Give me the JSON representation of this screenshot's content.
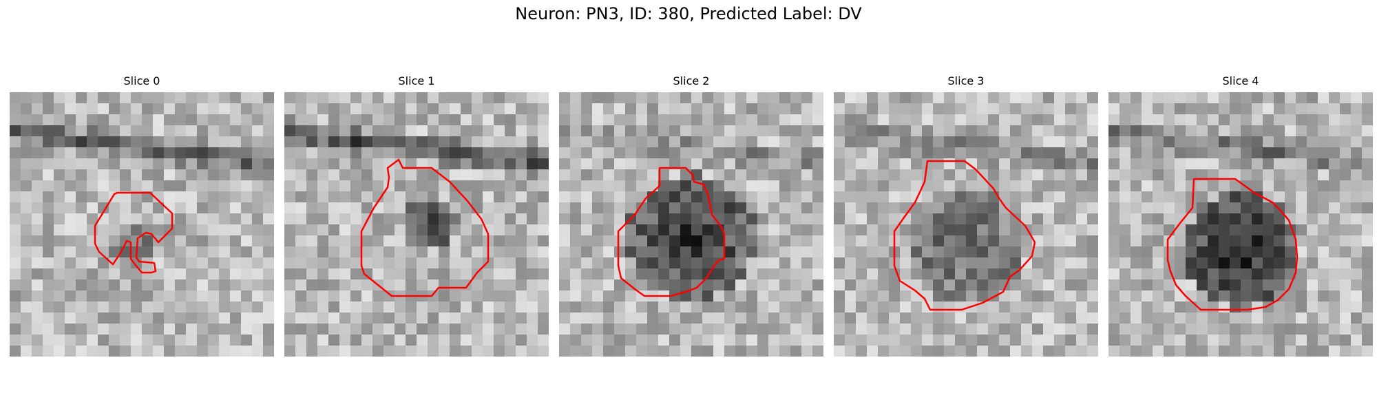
{
  "figure": {
    "title": "Neuron: PN3, ID: 380, Predicted Label: DV"
  },
  "panels": [
    {
      "title": "Slice 0"
    },
    {
      "title": "Slice 1"
    },
    {
      "title": "Slice 2"
    },
    {
      "title": "Slice 3"
    },
    {
      "title": "Slice 4"
    }
  ],
  "colors": {
    "contour": "#ff0000",
    "background": "#ffffff"
  }
}
